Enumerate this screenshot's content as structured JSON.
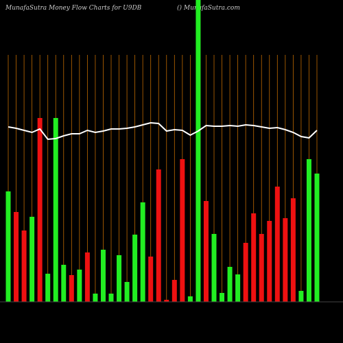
{
  "chart_data": {
    "type": "bar",
    "title": "MunafaSutra  Money Flow  Charts for U9DB",
    "subtitle": "() MunafaSutra.com",
    "categories": [
      null,
      null,
      null,
      null,
      null,
      null,
      null,
      null,
      null,
      null,
      null,
      null,
      null,
      null,
      null,
      null,
      null,
      null,
      null,
      null,
      null,
      null,
      null,
      null,
      null,
      null,
      null,
      null,
      null,
      null,
      null,
      null,
      null,
      null,
      null,
      null,
      null,
      null,
      null,
      null
    ],
    "values": [
      161,
      131,
      104,
      124,
      268,
      41,
      268,
      54,
      39,
      47,
      72,
      12,
      76,
      12,
      68,
      29,
      98,
      145,
      66,
      193,
      3,
      32,
      208,
      8,
      440,
      147,
      99,
      13,
      51,
      40,
      86,
      129,
      99,
      118,
      168,
      122,
      151,
      16,
      208,
      187
    ],
    "bar_colors": [
      "#22ee22",
      "#ee1111",
      "#ee1111",
      "#22ee22",
      "#ee1111",
      "#22ee22",
      "#22ee22",
      "#22ee22",
      "#ee1111",
      "#22ee22",
      "#ee1111",
      "#22ee22",
      "#22ee22",
      "#22ee22",
      "#22ee22",
      "#22ee22",
      "#22ee22",
      "#22ee22",
      "#ee1111",
      "#ee1111",
      "#ee1111",
      "#ee1111",
      "#ee1111",
      "#22ee22",
      "#22ee22",
      "#ee1111",
      "#22ee22",
      "#22ee22",
      "#22ee22",
      "#22ee22",
      "#ee1111",
      "#ee1111",
      "#ee1111",
      "#ee1111",
      "#ee1111",
      "#ee1111",
      "#ee1111",
      "#22ee22",
      "#22ee22",
      "#22ee22"
    ],
    "line": {
      "color": "#ffffff",
      "values": [
        255,
        253,
        250,
        247,
        252,
        237,
        238,
        242,
        245,
        245,
        250,
        247,
        249,
        252,
        252,
        253,
        255,
        258,
        261,
        260,
        249,
        251,
        250,
        243,
        249,
        257,
        256,
        256,
        257,
        256,
        258,
        257,
        255,
        253,
        254,
        251,
        247,
        241,
        239,
        250
      ]
    },
    "grid_color": "#c06a00",
    "ylim": [
      0,
      440
    ]
  }
}
